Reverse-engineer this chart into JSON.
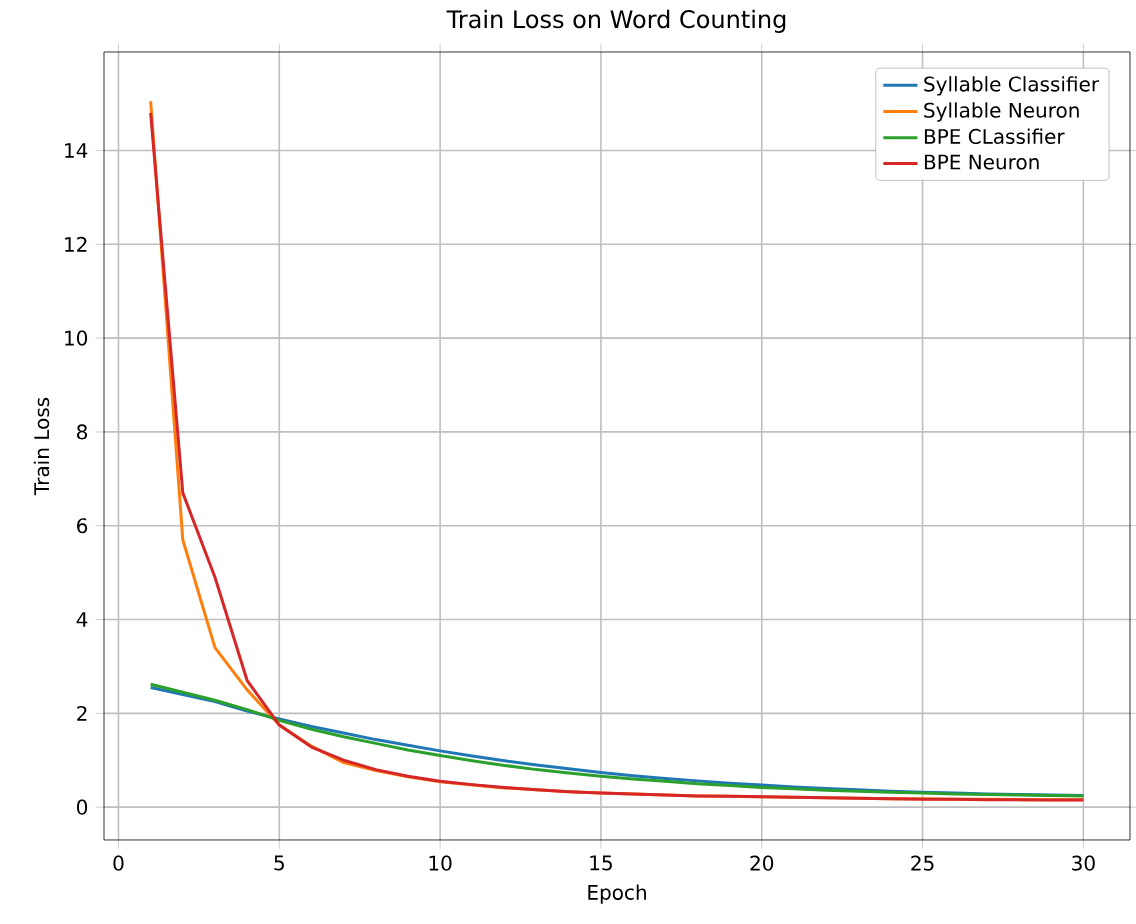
{
  "chart_data": {
    "type": "line",
    "title": "Train Loss on Word Counting",
    "xlabel": "Epoch",
    "ylabel": "Train Loss",
    "x": [
      1,
      2,
      3,
      4,
      5,
      6,
      7,
      8,
      9,
      10,
      11,
      12,
      13,
      14,
      15,
      16,
      17,
      18,
      19,
      20,
      21,
      22,
      23,
      24,
      25,
      26,
      27,
      28,
      29,
      30
    ],
    "series": [
      {
        "name": "Syllable Classifier",
        "color": "#1f77b4",
        "values": [
          2.55,
          2.4,
          2.25,
          2.05,
          1.88,
          1.72,
          1.58,
          1.44,
          1.32,
          1.2,
          1.09,
          0.99,
          0.9,
          0.82,
          0.74,
          0.67,
          0.61,
          0.56,
          0.51,
          0.47,
          0.43,
          0.4,
          0.37,
          0.34,
          0.32,
          0.3,
          0.28,
          0.27,
          0.26,
          0.25
        ]
      },
      {
        "name": "Syllable Neuron",
        "color": "#ff7f0e",
        "values": [
          15.05,
          5.7,
          3.4,
          2.5,
          1.75,
          1.3,
          0.95,
          0.78,
          0.65,
          0.54,
          0.47,
          0.41,
          0.37,
          0.33,
          0.3,
          0.28,
          0.26,
          0.24,
          0.23,
          0.22,
          0.21,
          0.2,
          0.19,
          0.18,
          0.18,
          0.17,
          0.17,
          0.16,
          0.16,
          0.16
        ]
      },
      {
        "name": "BPE CLassifier",
        "color": "#2ca02c",
        "values": [
          2.62,
          2.45,
          2.28,
          2.08,
          1.85,
          1.66,
          1.5,
          1.36,
          1.22,
          1.1,
          0.99,
          0.89,
          0.8,
          0.73,
          0.66,
          0.6,
          0.55,
          0.5,
          0.46,
          0.42,
          0.39,
          0.36,
          0.34,
          0.32,
          0.3,
          0.28,
          0.27,
          0.26,
          0.25,
          0.24
        ]
      },
      {
        "name": "BPE Neuron",
        "color": "#d62728",
        "values": [
          14.8,
          6.7,
          4.9,
          2.7,
          1.75,
          1.28,
          1.0,
          0.8,
          0.66,
          0.55,
          0.48,
          0.42,
          0.37,
          0.33,
          0.3,
          0.28,
          0.26,
          0.24,
          0.23,
          0.22,
          0.21,
          0.2,
          0.19,
          0.18,
          0.17,
          0.17,
          0.16,
          0.16,
          0.15,
          0.15
        ]
      }
    ],
    "xlim": [
      -0.45,
      31.45
    ],
    "ylim": [
      -0.7,
      16.1
    ],
    "xticks": [
      0,
      5,
      10,
      15,
      20,
      25,
      30
    ],
    "yticks": [
      0,
      2,
      4,
      6,
      8,
      10,
      12,
      14
    ],
    "grid": true,
    "legend": "top right",
    "marker": "none",
    "line_style": "solid"
  }
}
